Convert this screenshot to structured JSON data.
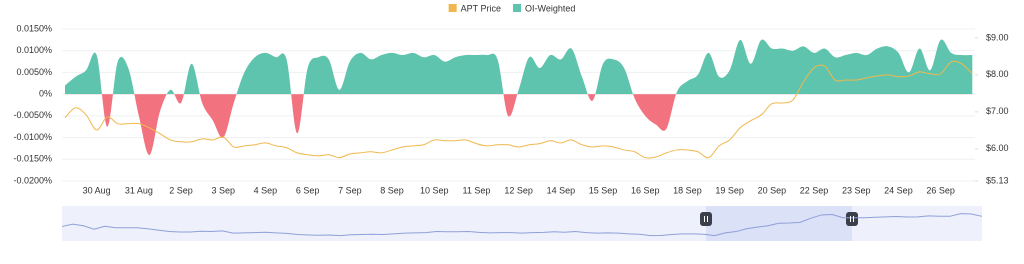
{
  "chart_data": {
    "type": "area-line",
    "categories": [
      null,
      null,
      null,
      "30 Aug",
      null,
      null,
      null,
      "31 Aug",
      null,
      null,
      null,
      "2 Sep",
      null,
      null,
      null,
      "3 Sep",
      null,
      null,
      null,
      "4 Sep",
      null,
      null,
      null,
      "6 Sep",
      null,
      null,
      null,
      "7 Sep",
      null,
      null,
      null,
      "8 Sep",
      null,
      null,
      null,
      "10 Sep",
      null,
      null,
      null,
      "11 Sep",
      null,
      null,
      null,
      "12 Sep",
      null,
      null,
      null,
      "14 Sep",
      null,
      null,
      null,
      "15 Sep",
      null,
      null,
      null,
      "16 Sep",
      null,
      null,
      null,
      "18 Sep",
      null,
      null,
      null,
      "19 Sep",
      null,
      null,
      null,
      "20 Sep",
      null,
      null,
      null,
      "22 Sep",
      null,
      null,
      null,
      "23 Sep",
      null,
      null,
      null,
      "24 Sep",
      null,
      null,
      null,
      "26 Sep",
      null,
      null,
      null
    ],
    "series": [
      {
        "name": "APT Price",
        "color": "#f0b84c",
        "axis": "y2",
        "values": [
          6.84,
          7.11,
          6.92,
          6.51,
          6.86,
          6.68,
          6.68,
          6.68,
          6.57,
          6.41,
          6.24,
          6.19,
          6.19,
          6.27,
          6.24,
          6.32,
          6.05,
          6.08,
          6.11,
          6.16,
          6.08,
          6.03,
          5.89,
          5.84,
          5.81,
          5.84,
          5.76,
          5.86,
          5.89,
          5.92,
          5.89,
          5.97,
          6.05,
          6.08,
          6.11,
          6.24,
          6.22,
          6.22,
          6.24,
          6.14,
          6.08,
          6.11,
          6.11,
          6.05,
          6.11,
          6.14,
          6.22,
          6.16,
          6.24,
          6.11,
          6.05,
          6.08,
          6.05,
          5.97,
          5.92,
          5.76,
          5.78,
          5.89,
          5.97,
          5.97,
          5.92,
          5.76,
          6.08,
          6.24,
          6.57,
          6.76,
          6.92,
          7.22,
          7.24,
          7.32,
          7.81,
          8.19,
          8.24,
          7.86,
          7.86,
          7.86,
          7.92,
          7.97,
          8.0,
          7.95,
          7.97,
          8.08,
          8.03,
          8.03,
          8.35,
          8.3,
          8.03
        ]
      },
      {
        "name": "OI-Weighted",
        "color": "#5fc4ad",
        "negative_color": "#f2727f",
        "values": [
          0.002,
          0.004,
          0.0055,
          0.009,
          -0.0075,
          0.0075,
          0.006,
          -0.005,
          -0.014,
          -0.004,
          0.001,
          -0.002,
          0.007,
          -0.002,
          -0.006,
          -0.01,
          -0.002,
          0.005,
          0.0085,
          0.0095,
          0.0085,
          0.008,
          -0.009,
          0.006,
          0.0085,
          0.008,
          0.001,
          0.0075,
          0.0095,
          0.008,
          0.009,
          0.0095,
          0.009,
          0.0095,
          0.0085,
          0.009,
          0.0075,
          0.0085,
          0.009,
          0.009,
          0.009,
          0.008,
          -0.005,
          0.001,
          0.0085,
          0.006,
          0.009,
          0.008,
          0.0105,
          0.004,
          -0.0015,
          0.007,
          0.008,
          0.006,
          -0.001,
          -0.005,
          -0.007,
          -0.008,
          0.0005,
          0.003,
          0.0045,
          0.0095,
          0.004,
          0.0055,
          0.0125,
          0.007,
          0.0125,
          0.0105,
          0.0105,
          0.01,
          0.011,
          0.0095,
          0.0105,
          0.0085,
          0.009,
          0.0095,
          0.009,
          0.0105,
          0.011,
          0.0095,
          0.005,
          0.0105,
          0.0055,
          0.0125,
          0.0095,
          0.009,
          0.009
        ]
      }
    ],
    "ylim": [
      -0.02,
      0.015
    ],
    "yticks": [
      {
        "value": 0.015,
        "label": "0.0150%"
      },
      {
        "value": 0.01,
        "label": "0.0100%"
      },
      {
        "value": 0.005,
        "label": "0.0050%"
      },
      {
        "value": 0,
        "label": "0%"
      },
      {
        "value": -0.005,
        "label": "-0.0050%"
      },
      {
        "value": -0.01,
        "label": "-0.0100%"
      },
      {
        "value": -0.015,
        "label": "-0.0150%"
      },
      {
        "value": -0.02,
        "label": "-0.0200%"
      }
    ],
    "y2lim": [
      5.13,
      9.24
    ],
    "y2ticks": [
      {
        "value": 9,
        "label": "$9.00"
      },
      {
        "value": 8,
        "label": "$8.00"
      },
      {
        "value": 7,
        "label": "$7.00"
      },
      {
        "value": 6,
        "label": "$6.00"
      },
      {
        "value": 5.13,
        "label": "$5.13"
      }
    ],
    "grid": true,
    "legend": "top"
  }
}
